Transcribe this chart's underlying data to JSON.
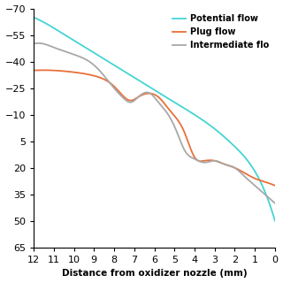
{
  "xlabel": "Distance from oxidizer nozzle (mm)",
  "xlim": [
    12,
    0
  ],
  "ylim": [
    65,
    -70
  ],
  "yticks": [
    -70,
    -55,
    -40,
    -25,
    -10,
    5,
    20,
    35,
    50,
    65
  ],
  "xticks": [
    12,
    11,
    10,
    9,
    8,
    7,
    6,
    5,
    4,
    3,
    2,
    1,
    0
  ],
  "potential_flow_color": "#45D4D4",
  "plug_flow_color": "#E8703A",
  "intermediate_flow_color": "#A8A8A8",
  "legend_labels": [
    "Potential flow",
    "Plug flow",
    "Intermediate flo"
  ],
  "background_color": "#ffffff",
  "potential_x": [
    12,
    11,
    10,
    9,
    8,
    7,
    6,
    5,
    4,
    3,
    2,
    1,
    0
  ],
  "potential_y": [
    -65,
    -59,
    -52,
    -45,
    -38,
    -31,
    -24,
    -17,
    -10,
    -2,
    8,
    22,
    50
  ],
  "plug_x": [
    12,
    11,
    10,
    9,
    8.5,
    8,
    7.5,
    7.2,
    6.8,
    6.2,
    5.8,
    5.2,
    4.5,
    4,
    3.5,
    3,
    2.5,
    2,
    1.5,
    1,
    0.5,
    0
  ],
  "plug_y": [
    -35,
    -35,
    -34,
    -32,
    -30,
    -26,
    -20,
    -18,
    -20,
    -22,
    -20,
    -12,
    0,
    14,
    16,
    16,
    18,
    20,
    23,
    26,
    28,
    30
  ],
  "inter_x": [
    12,
    11.5,
    11,
    10,
    9,
    8.5,
    8,
    7.5,
    7.2,
    6.8,
    6.2,
    5.8,
    5.2,
    4.8,
    4.5,
    4,
    3.5,
    3,
    2.5,
    2,
    1.5,
    1,
    0.5,
    0
  ],
  "inter_y": [
    -50,
    -50,
    -48,
    -44,
    -38,
    -32,
    -25,
    -19,
    -17,
    -20,
    -22,
    -17,
    -8,
    2,
    10,
    15,
    17,
    16,
    18,
    20,
    25,
    30,
    35,
    40
  ]
}
